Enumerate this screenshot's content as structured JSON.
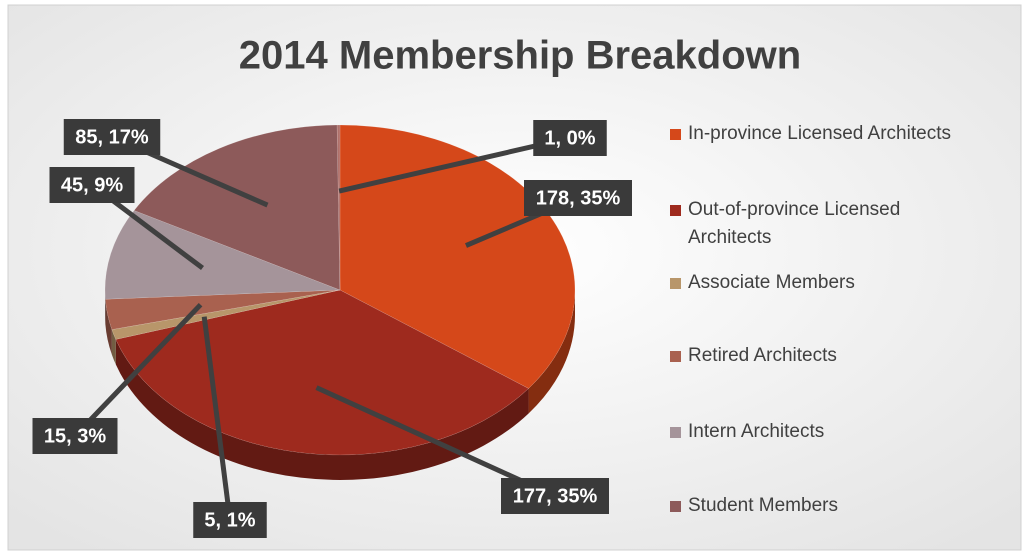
{
  "chart_data": {
    "type": "pie",
    "title": "2014 Membership Breakdown",
    "categories": [
      "In-province Licensed Architects",
      "Out-of-province Licensed Architects",
      "Associate Members",
      "Retired Architects",
      "Intern Architects",
      "Student Members",
      null
    ],
    "values": [
      178,
      177,
      5,
      15,
      45,
      85,
      1
    ],
    "value_labels": [
      "178, 35%",
      "177, 35%",
      "5, 1%",
      "15, 3%",
      "45, 9%",
      "85, 17%",
      "1, 0%"
    ],
    "colors": [
      "#d5481a",
      "#9e2a1e",
      "#b8966a",
      "#a9614f",
      "#a5949a",
      "#8d5a5a",
      "#b0716b"
    ],
    "legend": "right"
  }
}
